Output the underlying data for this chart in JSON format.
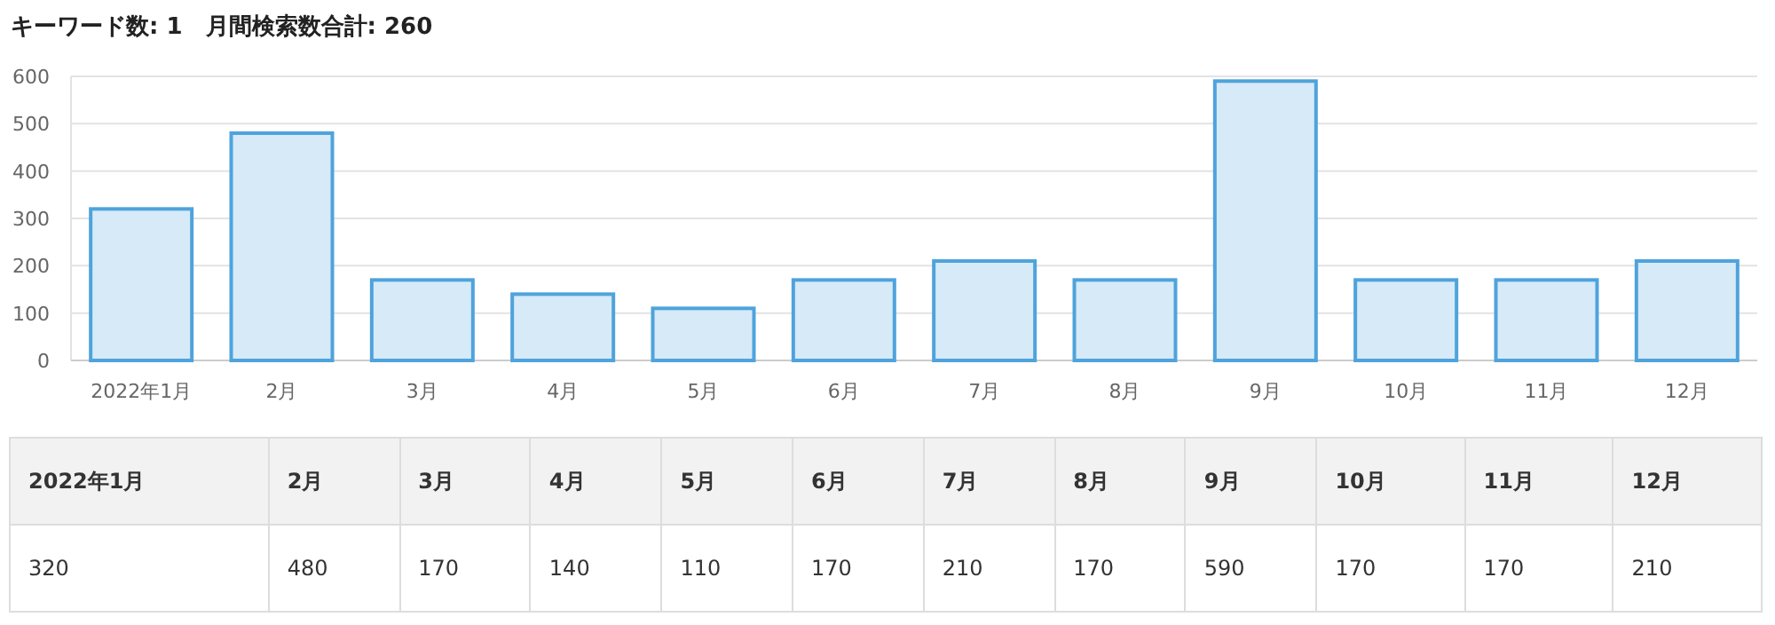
{
  "chart_data": {
    "type": "bar",
    "title": "キーワード数: 1　月間検索数合計: 260",
    "categories": [
      "2022年1月",
      "2月",
      "3月",
      "4月",
      "5月",
      "6月",
      "7月",
      "8月",
      "9月",
      "10月",
      "11月",
      "12月"
    ],
    "values": [
      320,
      480,
      170,
      140,
      110,
      170,
      210,
      170,
      590,
      170,
      170,
      210
    ],
    "color": "#d6eaf8",
    "ylim": [
      0,
      600
    ],
    "yticks": [
      0,
      100,
      200,
      300,
      400,
      500,
      600
    ],
    "grid": "y",
    "data_labels": true
  }
}
